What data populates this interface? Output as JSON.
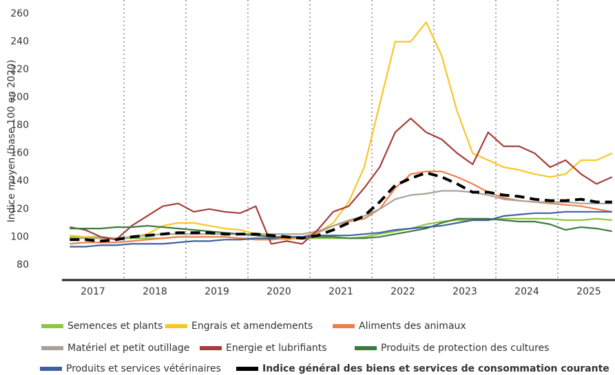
{
  "chart_data": {
    "type": "line",
    "y_label": "Indice moyen (base 100 en 2020)",
    "categories": [
      null,
      "2017",
      null,
      null,
      null,
      "2018",
      null,
      null,
      null,
      "2019",
      null,
      null,
      null,
      "2020",
      null,
      null,
      null,
      "2021",
      null,
      null,
      null,
      "2022",
      null,
      null,
      null,
      "2023",
      null,
      null,
      null,
      "2024",
      null,
      null,
      null,
      "2025",
      null,
      null
    ],
    "ylim": [
      72,
      265
    ],
    "yticks": [
      80,
      100,
      120,
      140,
      160,
      180,
      200,
      220,
      240,
      260
    ],
    "grid": false,
    "series": [
      {
        "name": "Semences et plants",
        "color": "#8dc63f",
        "values": [
          100,
          100,
          100,
          99,
          99,
          99,
          99,
          100,
          100,
          100,
          100,
          99,
          99,
          99,
          99,
          99,
          99,
          99,
          99,
          100,
          102,
          104,
          106,
          109,
          111,
          112,
          112,
          112,
          113,
          113,
          113,
          113,
          112,
          112,
          113,
          112
        ]
      },
      {
        "name": "Engrais et amendements",
        "color": "#f9c623",
        "values": [
          101,
          100,
          99,
          99,
          100,
          102,
          108,
          110,
          110,
          108,
          106,
          105,
          102,
          100,
          98,
          99,
          103,
          110,
          125,
          150,
          195,
          240,
          240,
          254,
          230,
          190,
          160,
          155,
          150,
          148,
          145,
          143,
          145,
          155,
          155,
          160
        ]
      },
      {
        "name": "Aliments des animaux",
        "color": "#ee7f4c",
        "values": [
          95,
          96,
          96,
          96,
          97,
          98,
          99,
          100,
          100,
          100,
          100,
          99,
          98,
          98,
          99,
          100,
          103,
          108,
          111,
          113,
          120,
          135,
          145,
          147,
          147,
          143,
          138,
          132,
          128,
          126,
          125,
          124,
          123,
          122,
          120,
          118
        ]
      },
      {
        "name": "Matériel et petit outillage",
        "color": "#a8a198",
        "values": [
          99,
          99,
          99,
          99,
          100,
          101,
          102,
          102,
          102,
          102,
          102,
          102,
          102,
          102,
          102,
          102,
          104,
          108,
          112,
          115,
          120,
          127,
          130,
          131,
          133,
          133,
          132,
          130,
          127,
          126,
          125,
          125,
          125,
          124,
          124,
          124
        ]
      },
      {
        "name": "Energie et lubrifiants",
        "color": "#a73a3a",
        "values": [
          107,
          105,
          100,
          98,
          108,
          115,
          122,
          124,
          118,
          120,
          118,
          117,
          122,
          95,
          97,
          95,
          105,
          118,
          122,
          135,
          150,
          175,
          185,
          175,
          170,
          160,
          152,
          175,
          165,
          165,
          160,
          150,
          155,
          145,
          138,
          143
        ]
      },
      {
        "name": "Produits de protection des cultures",
        "color": "#3d7a3e",
        "values": [
          106,
          106,
          106,
          107,
          107,
          108,
          107,
          106,
          105,
          104,
          103,
          102,
          101,
          100,
          100,
          100,
          100,
          100,
          99,
          99,
          100,
          102,
          104,
          106,
          110,
          113,
          113,
          113,
          112,
          111,
          111,
          109,
          105,
          107,
          106,
          104
        ]
      },
      {
        "name": "Produits et services vétérinaires",
        "color": "#3f5fa0",
        "values": [
          93,
          93,
          94,
          94,
          95,
          95,
          95,
          96,
          97,
          97,
          98,
          98,
          99,
          99,
          100,
          100,
          101,
          101,
          101,
          102,
          103,
          105,
          106,
          107,
          108,
          110,
          112,
          112,
          115,
          116,
          117,
          117,
          118,
          118,
          118,
          118
        ]
      },
      {
        "name": "Indice général des biens et services de consommation courante",
        "color": "#000000",
        "dashed": true,
        "values": [
          98,
          98,
          97,
          98,
          100,
          101,
          102,
          103,
          103,
          103,
          102,
          102,
          102,
          101,
          100,
          99,
          101,
          105,
          110,
          115,
          125,
          137,
          142,
          146,
          143,
          138,
          132,
          132,
          130,
          129,
          127,
          126,
          126,
          127,
          125,
          125
        ]
      }
    ]
  }
}
